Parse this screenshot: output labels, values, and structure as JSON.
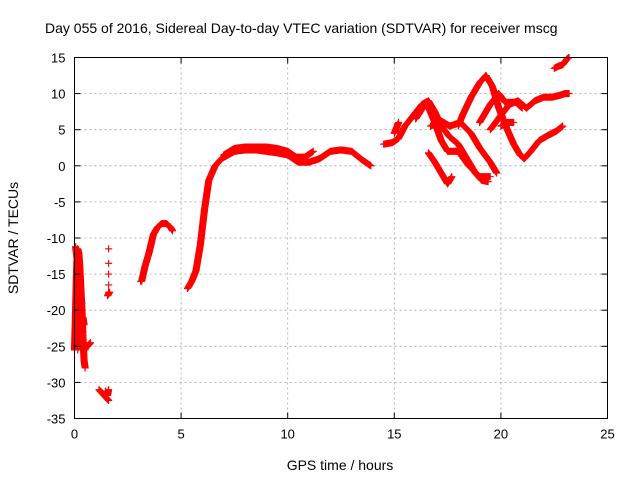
{
  "chart_data": {
    "type": "scatter",
    "title": "Day 055 of 2016, Sidereal Day-to-day VTEC variation (SDTVAR) for receiver mscg",
    "xlabel": "GPS time / hours",
    "ylabel": "SDTVAR / TECUs",
    "xlim": [
      0,
      25
    ],
    "ylim": [
      -35,
      15
    ],
    "xticks": [
      0,
      5,
      10,
      15,
      20,
      25
    ],
    "yticks": [
      15,
      10,
      5,
      0,
      -5,
      -10,
      -15,
      -20,
      -25,
      -30,
      -35
    ],
    "grid": true,
    "marker": "+",
    "color": "#ff0000",
    "series": [
      {
        "name": "SDTVAR",
        "segments": [
          [
            [
              0.0,
              -25.5
            ],
            [
              0.05,
              -20
            ],
            [
              0.1,
              -14
            ],
            [
              0.15,
              -11.5
            ],
            [
              0.2,
              -12
            ],
            [
              0.25,
              -14
            ],
            [
              0.3,
              -17
            ],
            [
              0.35,
              -20
            ],
            [
              0.4,
              -24
            ],
            [
              0.45,
              -27
            ],
            [
              0.5,
              -28
            ]
          ],
          [
            [
              0.05,
              -11.2
            ],
            [
              0.15,
              -13.5
            ],
            [
              0.25,
              -17
            ],
            [
              0.3,
              -22
            ],
            [
              0.35,
              -24.5
            ],
            [
              0.45,
              -25.5
            ],
            [
              0.6,
              -25
            ],
            [
              0.75,
              -24.5
            ]
          ],
          [
            [
              0.15,
              -25.5
            ],
            [
              0.2,
              -24
            ],
            [
              0.3,
              -22
            ],
            [
              0.4,
              -21
            ],
            [
              0.45,
              -22
            ]
          ],
          [
            [
              1.15,
              -31
            ],
            [
              1.3,
              -31.5
            ],
            [
              1.45,
              -32
            ],
            [
              1.6,
              -32.5
            ]
          ],
          [
            [
              1.45,
              -31.2
            ],
            [
              1.55,
              -31.8
            ],
            [
              1.6,
              -31
            ]
          ],
          [
            [
              1.55,
              -18
            ],
            [
              1.65,
              -17.5
            ]
          ],
          [
            [
              3.15,
              -16
            ],
            [
              3.3,
              -14
            ],
            [
              3.5,
              -12
            ],
            [
              3.7,
              -9.5
            ],
            [
              3.9,
              -8.5
            ],
            [
              4.1,
              -8
            ],
            [
              4.3,
              -8
            ],
            [
              4.5,
              -8.5
            ],
            [
              4.6,
              -9
            ]
          ],
          [
            [
              5.3,
              -17
            ],
            [
              5.5,
              -16
            ],
            [
              5.7,
              -14.5
            ],
            [
              5.9,
              -11
            ],
            [
              6.1,
              -6
            ],
            [
              6.3,
              -2
            ],
            [
              6.6,
              0
            ],
            [
              6.9,
              1
            ],
            [
              7.2,
              1.5
            ],
            [
              7.5,
              2
            ],
            [
              8.0,
              2.2
            ],
            [
              8.5,
              2.2
            ],
            [
              9.0,
              2.0
            ],
            [
              9.5,
              1.8
            ],
            [
              10.0,
              1.5
            ],
            [
              10.5,
              0.5
            ],
            [
              11.0,
              0.5
            ],
            [
              11.5,
              1
            ],
            [
              12.0,
              2
            ],
            [
              12.5,
              2.2
            ],
            [
              13.0,
              2
            ],
            [
              13.5,
              0.8
            ],
            [
              13.9,
              0
            ]
          ],
          [
            [
              7.0,
              1.5
            ],
            [
              7.5,
              2.4
            ],
            [
              8.0,
              2.6
            ],
            [
              8.5,
              2.6
            ],
            [
              9.0,
              2.6
            ],
            [
              9.5,
              2.4
            ],
            [
              10.0,
              2.0
            ],
            [
              10.4,
              1.2
            ],
            [
              10.8,
              1.2
            ],
            [
              11.2,
              2
            ]
          ],
          [
            [
              14.5,
              3
            ],
            [
              14.9,
              3.2
            ],
            [
              15.2,
              3.8
            ],
            [
              15.5,
              5.5
            ],
            [
              15.9,
              7
            ],
            [
              16.3,
              8.5
            ],
            [
              16.6,
              9
            ],
            [
              16.9,
              7.5
            ],
            [
              17.2,
              5.5
            ],
            [
              17.6,
              4
            ],
            [
              18.0,
              3
            ],
            [
              18.4,
              1
            ],
            [
              18.8,
              -1
            ],
            [
              19.1,
              -2
            ],
            [
              19.4,
              -2.2
            ]
          ],
          [
            [
              15.0,
              4.5
            ],
            [
              15.2,
              6
            ]
          ],
          [
            [
              16.0,
              6.5
            ],
            [
              16.5,
              8.8
            ],
            [
              16.9,
              6
            ],
            [
              17.2,
              3.5
            ],
            [
              17.5,
              2
            ],
            [
              18.0,
              2
            ],
            [
              18.5,
              0
            ],
            [
              19.0,
              -1.5
            ],
            [
              19.5,
              -1.5
            ]
          ],
          [
            [
              16.6,
              1.8
            ],
            [
              16.9,
              0.5
            ],
            [
              17.2,
              -1
            ],
            [
              17.5,
              -2.5
            ],
            [
              17.7,
              -1.5
            ]
          ],
          [
            [
              16.7,
              5.5
            ],
            [
              17.2,
              6.2
            ],
            [
              17.6,
              5.5
            ],
            [
              18.1,
              6
            ],
            [
              18.6,
              4.5
            ],
            [
              19.0,
              2.5
            ],
            [
              19.5,
              0.5
            ],
            [
              19.8,
              -1
            ]
          ],
          [
            [
              18.0,
              5.5
            ],
            [
              18.2,
              7
            ],
            [
              18.6,
              9.5
            ],
            [
              19.0,
              11.5
            ],
            [
              19.3,
              12.5
            ],
            [
              19.6,
              11
            ],
            [
              19.9,
              8
            ],
            [
              20.3,
              5
            ],
            [
              20.6,
              3
            ],
            [
              20.9,
              1.5
            ],
            [
              21.1,
              1
            ],
            [
              21.4,
              2
            ],
            [
              21.8,
              3.5
            ],
            [
              22.2,
              4.2
            ],
            [
              22.6,
              4.8
            ],
            [
              22.9,
              5.5
            ]
          ],
          [
            [
              19.5,
              5
            ],
            [
              20.0,
              7
            ],
            [
              20.4,
              8.5
            ],
            [
              20.8,
              9
            ],
            [
              21.2,
              8
            ],
            [
              21.6,
              9
            ],
            [
              22.0,
              9.5
            ],
            [
              22.4,
              9.5
            ],
            [
              22.8,
              9.8
            ],
            [
              23.0,
              10
            ],
            [
              23.2,
              10
            ]
          ],
          [
            [
              19.0,
              6
            ],
            [
              19.5,
              8.5
            ],
            [
              19.9,
              10
            ],
            [
              20.2,
              8.8
            ],
            [
              20.7,
              8.8
            ],
            [
              21.0,
              8
            ]
          ],
          [
            [
              20.0,
              5.5
            ],
            [
              20.3,
              6
            ],
            [
              20.6,
              6
            ]
          ],
          [
            [
              22.5,
              13.5
            ],
            [
              22.7,
              13.8
            ],
            [
              22.9,
              14
            ],
            [
              23.1,
              14.8
            ],
            [
              23.2,
              15
            ]
          ]
        ],
        "points": [
          [
            1.6,
            -11.5
          ],
          [
            1.6,
            -13.5
          ],
          [
            1.6,
            -15
          ],
          [
            1.6,
            -16.5
          ],
          [
            1.6,
            -17.5
          ],
          [
            3.1,
            -16
          ],
          [
            0.35,
            -19
          ],
          [
            0.3,
            -18
          ],
          [
            0.4,
            -23
          ],
          [
            0.5,
            -25.5
          ]
        ]
      }
    ]
  }
}
